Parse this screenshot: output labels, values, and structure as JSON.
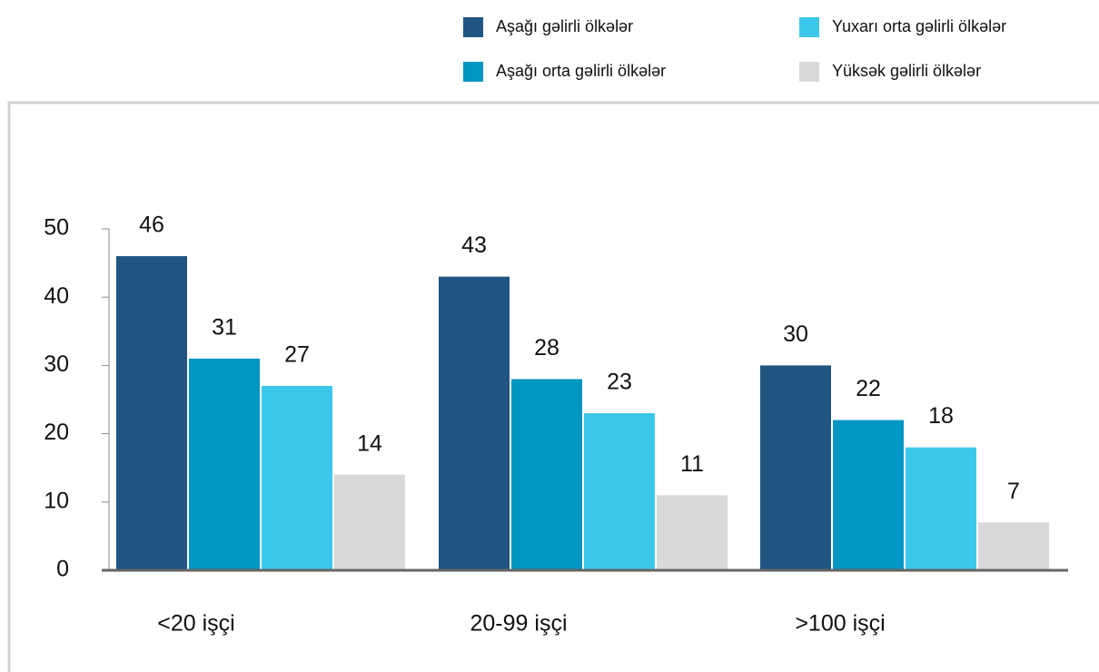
{
  "chart_data": {
    "type": "bar",
    "categories": [
      "<20 işçi",
      "20-99 işçi",
      ">100 işçi"
    ],
    "series": [
      {
        "name": "Aşağı gəlirli ölkələr",
        "color": "#1f5580",
        "values": [
          46,
          43,
          30
        ]
      },
      {
        "name": "Aşağı orta gəlirli ölkələr",
        "color": "#0096c4",
        "values": [
          31,
          28,
          22
        ]
      },
      {
        "name": "Yuxarı orta gəlirli ölkələr",
        "color": "#3bc8ea",
        "values": [
          27,
          23,
          18
        ]
      },
      {
        "name": "Yüksək gəlirli ölkələr",
        "color": "#d9d9d9",
        "values": [
          14,
          11,
          7
        ]
      }
    ],
    "ylim": [
      0,
      50
    ],
    "yticks": [
      0,
      10,
      20,
      30,
      40,
      50
    ],
    "grid": false,
    "legend": "top-right"
  }
}
